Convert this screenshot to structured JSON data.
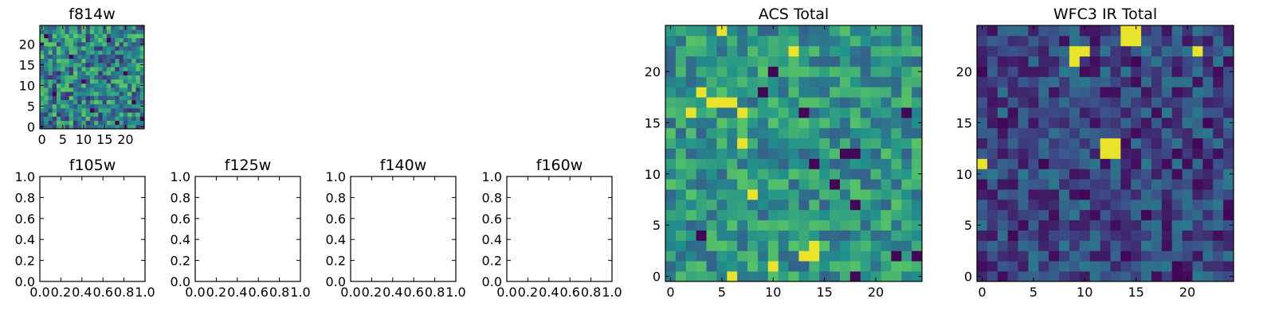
{
  "figure": {
    "background": "#ffffff"
  },
  "colormap": [
    "#440154",
    "#3b528b",
    "#21918c",
    "#5ec962",
    "#fde725"
  ],
  "chart_data": [
    {
      "id": "f814w",
      "type": "heatmap",
      "title": "f814w",
      "nx": 25,
      "ny": 25,
      "xlim": [
        -0.5,
        24.5
      ],
      "ylim": [
        -0.5,
        24.5
      ],
      "xticks": [
        0,
        5,
        10,
        15,
        20
      ],
      "yticks": [
        0,
        5,
        10,
        15,
        20
      ],
      "grid": false,
      "seed": 11,
      "low": 0.45,
      "spread": 0.6,
      "hot": [],
      "cold": [
        [
          24,
          2
        ],
        [
          3,
          8
        ],
        [
          20,
          13
        ],
        [
          12,
          4
        ],
        [
          7,
          17
        ],
        [
          16,
          21
        ],
        [
          22,
          6
        ],
        [
          1,
          22
        ],
        [
          18,
          1
        ],
        [
          10,
          11
        ]
      ]
    },
    {
      "id": "f105w",
      "type": "heatmap",
      "title": "f105w",
      "empty": true,
      "xlim": [
        0,
        1
      ],
      "ylim": [
        0,
        1
      ],
      "xticks": [
        0.0,
        0.2,
        0.4,
        0.6,
        0.8,
        1.0
      ],
      "yticks": [
        0.0,
        0.2,
        0.4,
        0.6,
        0.8,
        1.0
      ]
    },
    {
      "id": "f125w",
      "type": "heatmap",
      "title": "f125w",
      "empty": true,
      "xlim": [
        0,
        1
      ],
      "ylim": [
        0,
        1
      ],
      "xticks": [
        0.0,
        0.2,
        0.4,
        0.6,
        0.8,
        1.0
      ],
      "yticks": [
        0.0,
        0.2,
        0.4,
        0.6,
        0.8,
        1.0
      ]
    },
    {
      "id": "f140w",
      "type": "heatmap",
      "title": "f140w",
      "empty": true,
      "xlim": [
        0,
        1
      ],
      "ylim": [
        0,
        1
      ],
      "xticks": [
        0.0,
        0.2,
        0.4,
        0.6,
        0.8,
        1.0
      ],
      "yticks": [
        0.0,
        0.2,
        0.4,
        0.6,
        0.8,
        1.0
      ]
    },
    {
      "id": "f160w",
      "type": "heatmap",
      "title": "f160w",
      "empty": true,
      "xlim": [
        0,
        1
      ],
      "ylim": [
        0,
        1
      ],
      "xticks": [
        0.0,
        0.2,
        0.4,
        0.6,
        0.8,
        1.0
      ],
      "yticks": [
        0.0,
        0.2,
        0.4,
        0.6,
        0.8,
        1.0
      ]
    },
    {
      "id": "acs-total",
      "type": "heatmap",
      "title": "ACS Total",
      "nx": 25,
      "ny": 25,
      "xlim": [
        -0.5,
        24.5
      ],
      "ylim": [
        -0.5,
        24.5
      ],
      "xticks": [
        0,
        5,
        10,
        15,
        20
      ],
      "yticks": [
        0,
        5,
        10,
        15,
        20
      ],
      "grid": false,
      "seed": 29,
      "low": 0.52,
      "spread": 0.42,
      "hot": [
        [
          5,
          24
        ],
        [
          3,
          18
        ],
        [
          4,
          17
        ],
        [
          5,
          17
        ],
        [
          6,
          17
        ],
        [
          7,
          16
        ],
        [
          2,
          16
        ],
        [
          14,
          2
        ],
        [
          13,
          2
        ],
        [
          14,
          3
        ],
        [
          10,
          1
        ],
        [
          6,
          0
        ],
        [
          12,
          22
        ],
        [
          7,
          13
        ],
        [
          8,
          8
        ]
      ],
      "cold": [
        [
          9,
          18
        ],
        [
          13,
          16
        ],
        [
          23,
          16
        ],
        [
          14,
          11
        ],
        [
          17,
          12
        ],
        [
          18,
          12
        ],
        [
          18,
          7
        ],
        [
          3,
          4
        ],
        [
          18,
          0
        ],
        [
          22,
          2
        ],
        [
          24,
          2
        ],
        [
          10,
          20
        ],
        [
          16,
          9
        ]
      ]
    },
    {
      "id": "wfc3-ir-total",
      "type": "heatmap",
      "title": "WFC3 IR Total",
      "nx": 25,
      "ny": 25,
      "xlim": [
        -0.5,
        24.5
      ],
      "ylim": [
        -0.5,
        24.5
      ],
      "xticks": [
        0,
        5,
        10,
        15,
        20
      ],
      "yticks": [
        0,
        5,
        10,
        15,
        20
      ],
      "grid": false,
      "seed": 47,
      "low": 0.22,
      "spread": 0.38,
      "hot": [
        [
          14,
          24
        ],
        [
          15,
          24
        ],
        [
          14,
          23
        ],
        [
          15,
          23
        ],
        [
          9,
          22
        ],
        [
          10,
          22
        ],
        [
          9,
          21
        ],
        [
          12,
          13
        ],
        [
          13,
          13
        ],
        [
          12,
          12
        ],
        [
          13,
          12
        ],
        [
          0,
          11
        ],
        [
          21,
          22
        ]
      ],
      "cold": [
        [
          2,
          15
        ],
        [
          6,
          11
        ],
        [
          10,
          8
        ],
        [
          16,
          6
        ],
        [
          14,
          2
        ],
        [
          19,
          0
        ],
        [
          19,
          1
        ],
        [
          24,
          6
        ],
        [
          3,
          4
        ],
        [
          22,
          15
        ],
        [
          21,
          13
        ],
        [
          0,
          20
        ],
        [
          15,
          21
        ]
      ]
    }
  ]
}
